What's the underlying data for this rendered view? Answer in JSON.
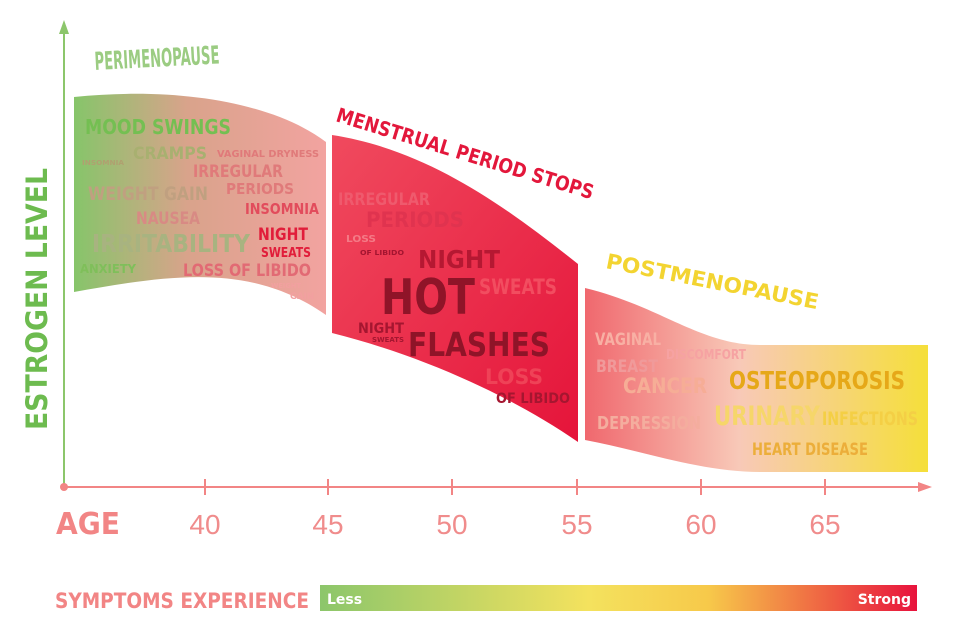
{
  "y_axis_label": "ESTROGEN LEVEL",
  "x_axis_label": "AGE",
  "ages": [
    "40",
    "45",
    "50",
    "55",
    "60",
    "65"
  ],
  "phases": {
    "perimenopause": "PERIMENOPAUSE",
    "menstrual_stop": "MENSTRUAL PERIOD STOPS",
    "postmenopause": "POSTMENOPAUSE"
  },
  "symptoms_perimenopause": {
    "mood_swings": "MOOD SWINGS",
    "cramps": "CRAMPS",
    "insomnia_small": "INSOMNIA",
    "vaginal_dryness": "VAGINAL DRYNESS",
    "irregular": "IRREGULAR",
    "periods": "PERIODS",
    "weight_gain": "WEIGHT GAIN",
    "insomnia": "INSOMNIA",
    "nausea": "NAUSEA",
    "night": "NIGHT",
    "sweats": "SWEATS",
    "irritability": "IRRITABILITY",
    "anxiety": "ANXIETY",
    "loss_of_libido": "LOSS OF LIBIDO",
    "weight": "WEIGHT",
    "gain": "GAIN"
  },
  "symptoms_menstrual": {
    "irregular": "IRREGULAR",
    "periods": "PERIODS",
    "loss": "LOSS",
    "of_libido_small": "OF LIBIDO",
    "night": "NIGHT",
    "hot": "HOT",
    "sweats": "SWEATS",
    "night_small": "NIGHT",
    "sweats_small": "SWEATS",
    "flashes": "FLASHES",
    "loss_big": "LOSS",
    "of_libido": "OF LIBIDO"
  },
  "symptoms_postmenopause": {
    "vaginal": "VAGINAL",
    "discomfort": "DISCOMFORT",
    "breast": "BREAST",
    "cancer": "CANCER",
    "osteoporosis": "OSTEOPOROSIS",
    "depression": "DEPRESSION",
    "urinary": "URINARY",
    "infections": "INFECTIONS",
    "heart_disease": "HEART DISEASE"
  },
  "legend": {
    "label": "SYMPTOMS EXPERIENCE",
    "less": "Less",
    "strong": "Strong"
  },
  "colors": {
    "green": "#7bbf5c",
    "red": "#e8213f",
    "yellow": "#f5d432",
    "pink": "#f28585"
  }
}
